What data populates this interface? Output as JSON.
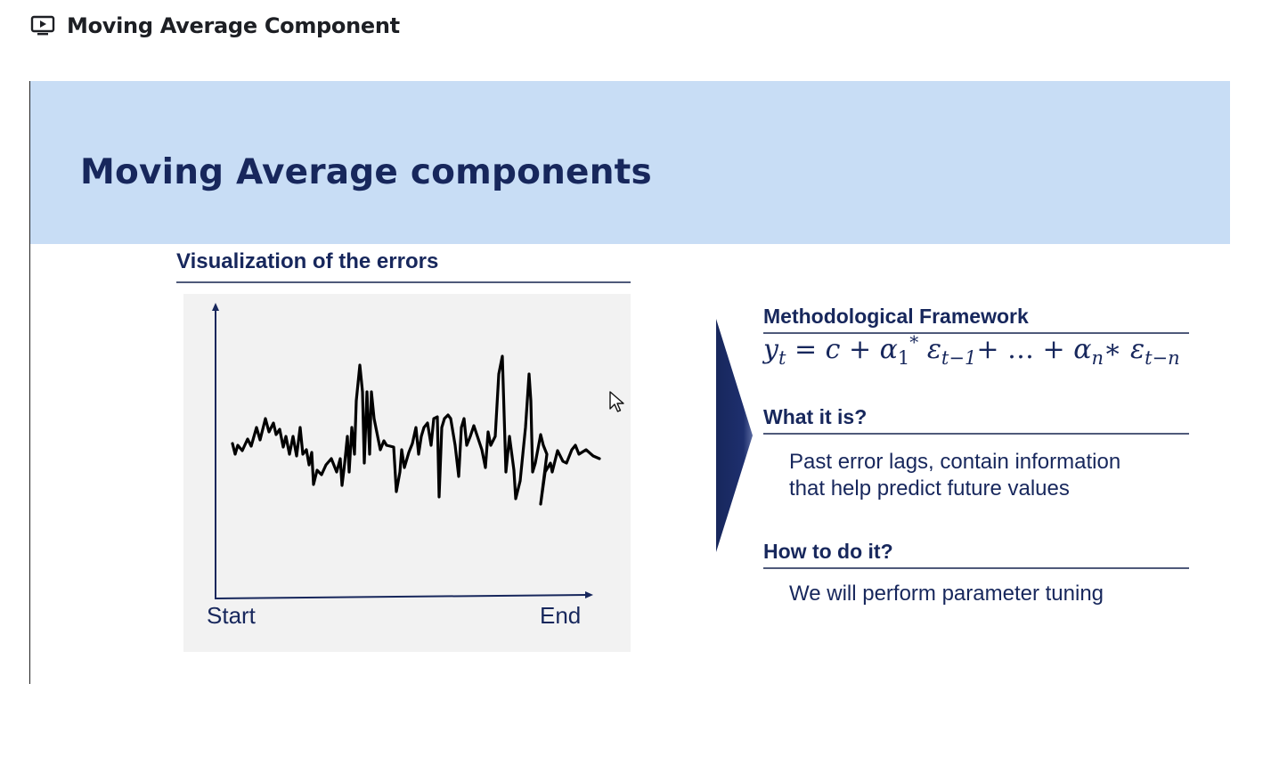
{
  "header": {
    "title": "Moving Average Component",
    "icon": "video-icon"
  },
  "slide": {
    "banner_color": "#c8ddf5",
    "heading": "Moving Average components",
    "left_panel": {
      "title": "Visualization of the errors",
      "x_start_label": "Start",
      "x_end_label": "End"
    },
    "framework": {
      "heading": "Methodological Framework",
      "formula": {
        "y": "y",
        "y_sub": "t",
        "eq": " = c + ",
        "a1": "α",
        "a1_sub": "1",
        "a1_sup": "*",
        "e1": " ε",
        "e1_sub": "t−1",
        "plus_dots": "+ … + ",
        "an": "α",
        "an_sub": "n",
        "star": "∗ ",
        "en": "ε",
        "en_sub": "t−n"
      }
    },
    "what_it_is": {
      "heading": "What it is?",
      "text_line1": "Past error lags, contain information",
      "text_line2": "that help predict future values"
    },
    "how_to": {
      "heading": "How to do it?",
      "text": "We will perform parameter tuning"
    },
    "colors": {
      "navy": "#17275c",
      "chart_bg": "#f2f2f2"
    }
  }
}
